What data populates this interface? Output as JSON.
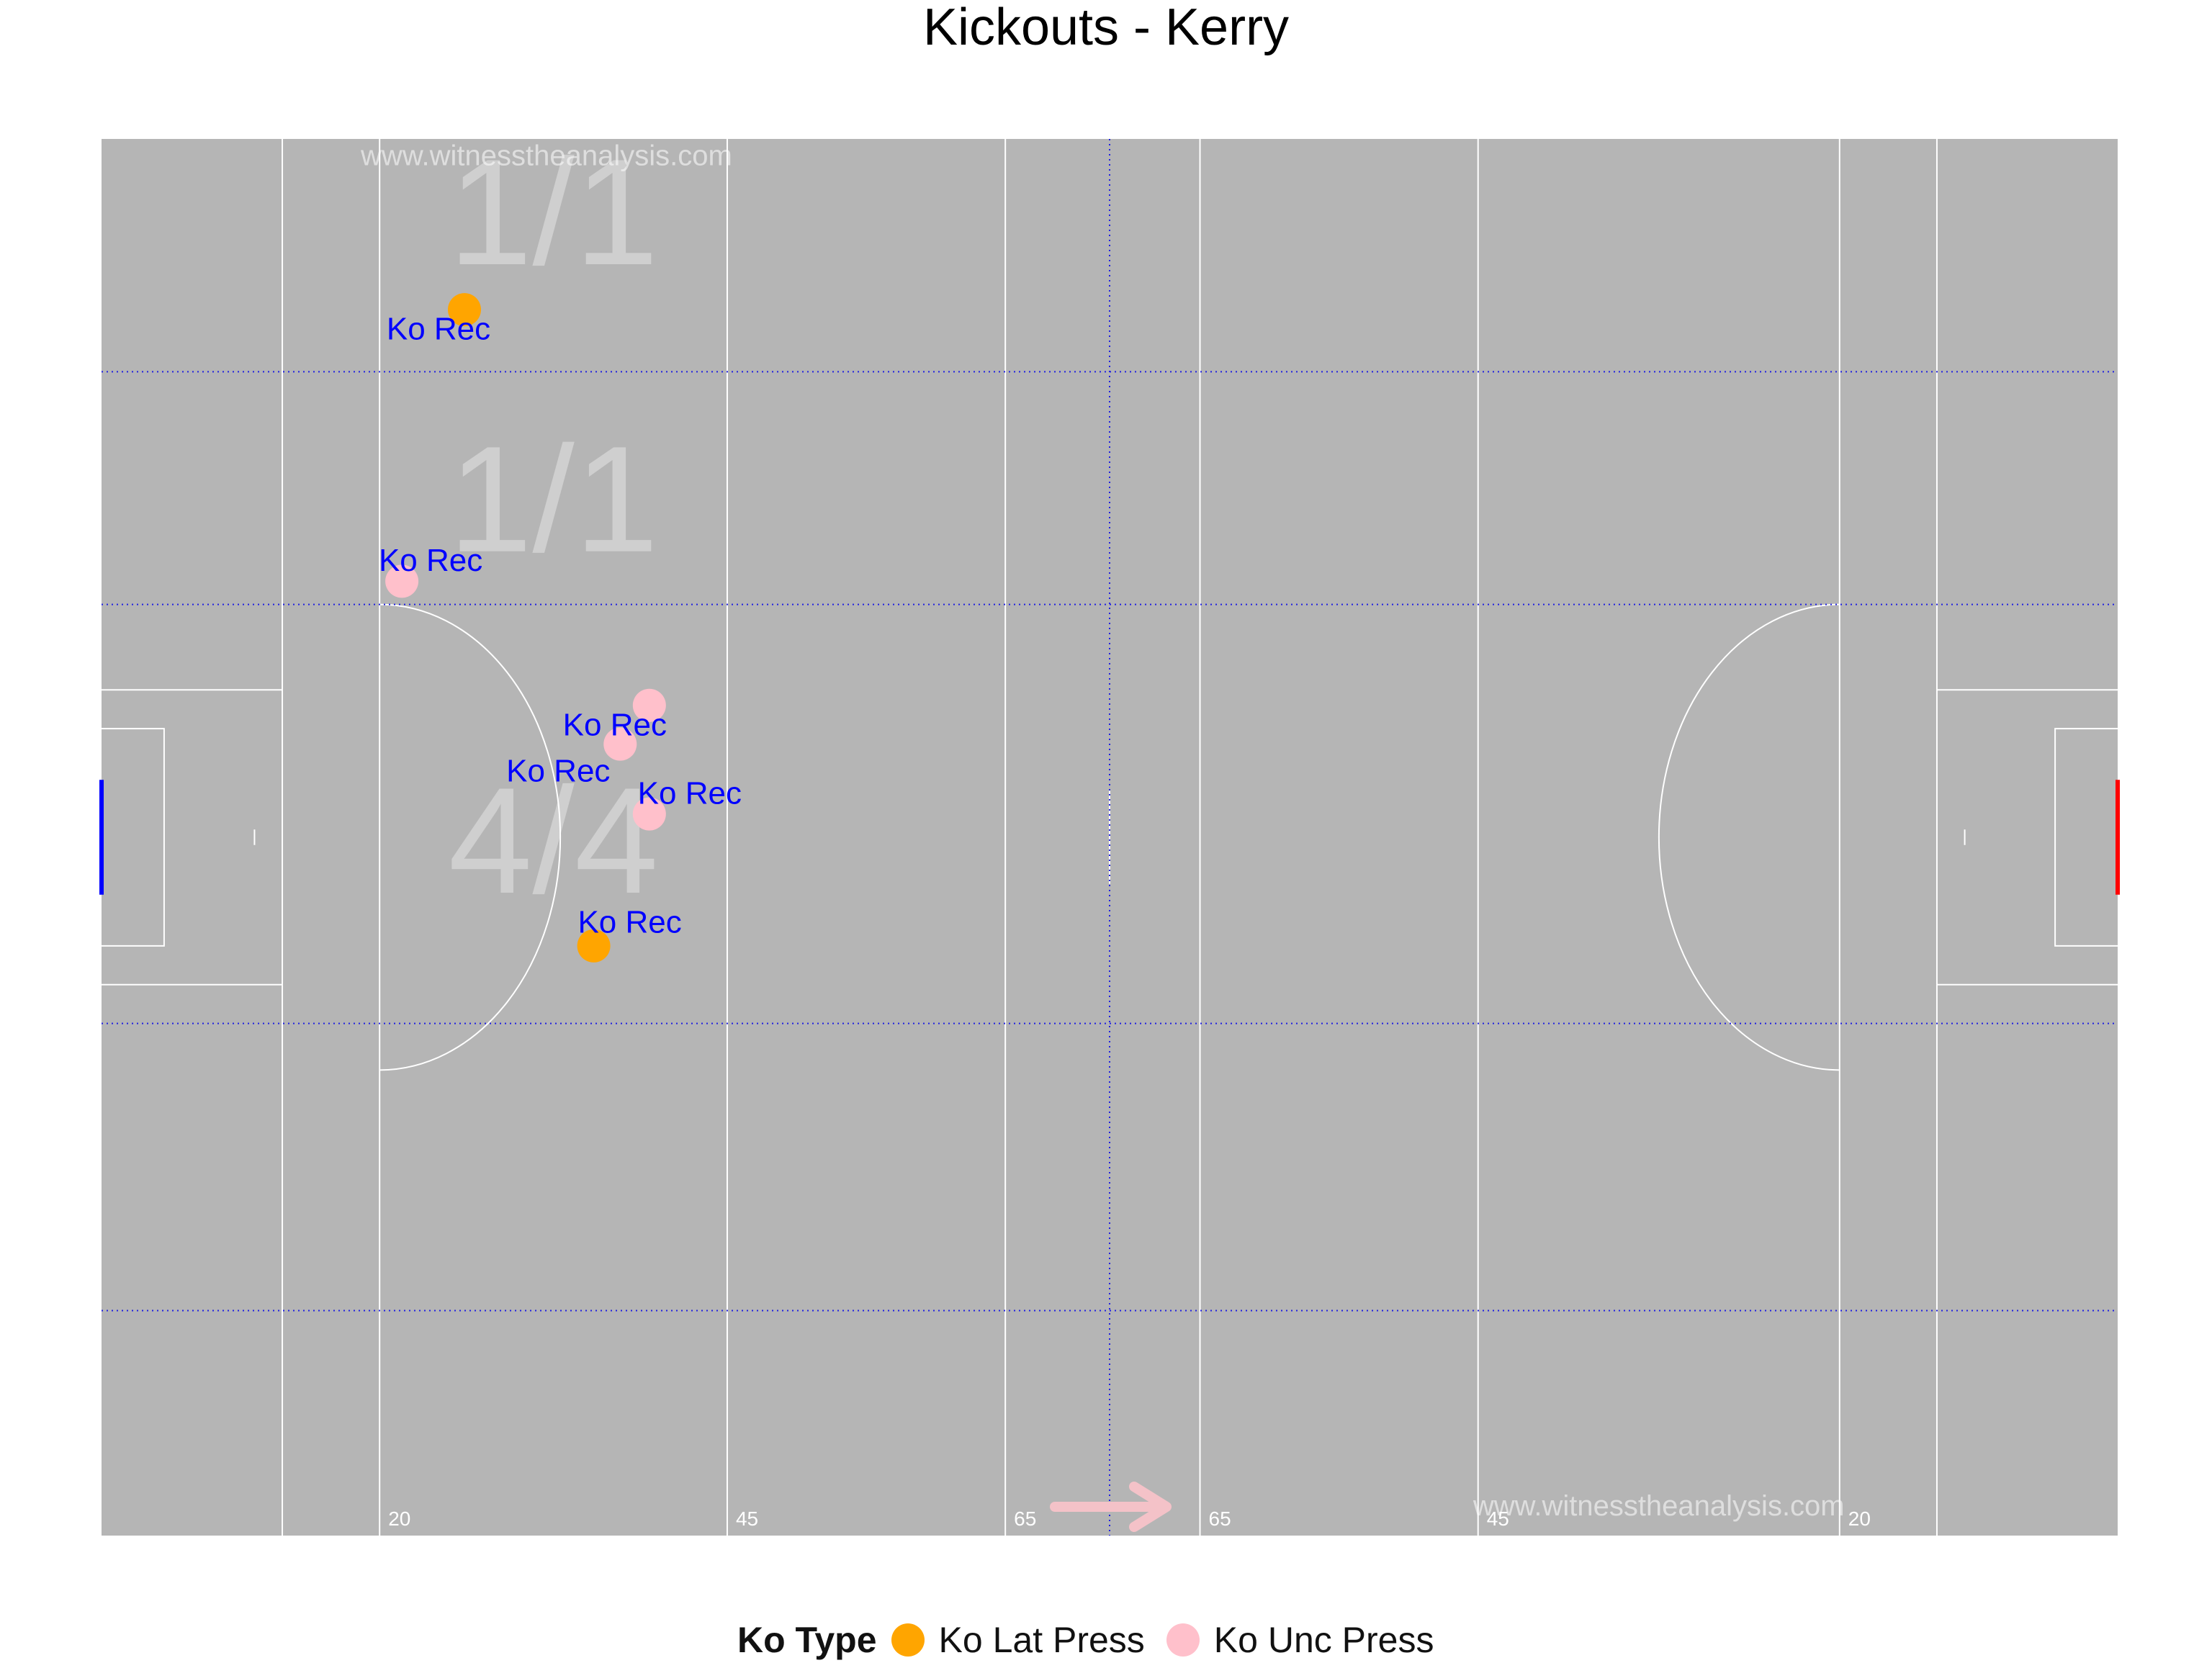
{
  "chart_data": {
    "type": "scatter",
    "title": "Kickouts - Kerry",
    "xlim": [
      0,
      145
    ],
    "ylim": [
      0,
      90
    ],
    "zone_boundaries_y": [
      14.5,
      33,
      60,
      75
    ],
    "midfield_x": 72.5,
    "pitch_lines": [
      {
        "x": 13,
        "label": ""
      },
      {
        "x": 20,
        "label": "20"
      },
      {
        "x": 45,
        "label": "45"
      },
      {
        "x": 65,
        "label": "65"
      },
      {
        "x": 79,
        "label": "65"
      },
      {
        "x": 99,
        "label": "45"
      },
      {
        "x": 125,
        "label": "20"
      },
      {
        "x": 132,
        "label": ""
      }
    ],
    "zone_labels": [
      {
        "x": 32.5,
        "y": 84.5,
        "text": "1/1"
      },
      {
        "x": 32.5,
        "y": 66,
        "text": "1/1"
      },
      {
        "x": 32.5,
        "y": 44,
        "text": "4/4"
      }
    ],
    "watermarks": [
      {
        "x": 32,
        "y": 88.8,
        "text": "www.witnesstheanalysis.com"
      },
      {
        "x": 112,
        "y": 1.8,
        "text": "www.witnesstheanalysis.com"
      }
    ],
    "points": [
      {
        "x": 26.1,
        "y": 79,
        "type": "Ko Lat Press",
        "label": "Ko Rec"
      },
      {
        "x": 21.6,
        "y": 61.5,
        "type": "Ko Unc Press",
        "label": "Ko Rec"
      },
      {
        "x": 39.4,
        "y": 53.5,
        "type": "Ko Unc Press",
        "label": "Ko Rec"
      },
      {
        "x": 37.3,
        "y": 51,
        "type": "Ko Unc Press",
        "label": "Ko Rec"
      },
      {
        "x": 39.4,
        "y": 46.5,
        "type": "Ko Unc Press",
        "label": "Ko Rec"
      },
      {
        "x": 35.4,
        "y": 38,
        "type": "Ko Lat Press",
        "label": "Ko Rec"
      }
    ],
    "legend": {
      "title": "Ko Type",
      "position": "bottom",
      "entries": [
        {
          "name": "Ko Lat Press",
          "color": "#FFA500"
        },
        {
          "name": "Ko Unc Press",
          "color": "#FFC0CB"
        }
      ]
    }
  },
  "colors": {
    "pitch": "#b5b5b5",
    "lines": "#ffffff",
    "zone_lines": "#2020e0",
    "point_labels": "#0000ff",
    "left_goal": "#0000ff",
    "right_goal": "#ff0000",
    "arrow": "#f4c2c8"
  }
}
